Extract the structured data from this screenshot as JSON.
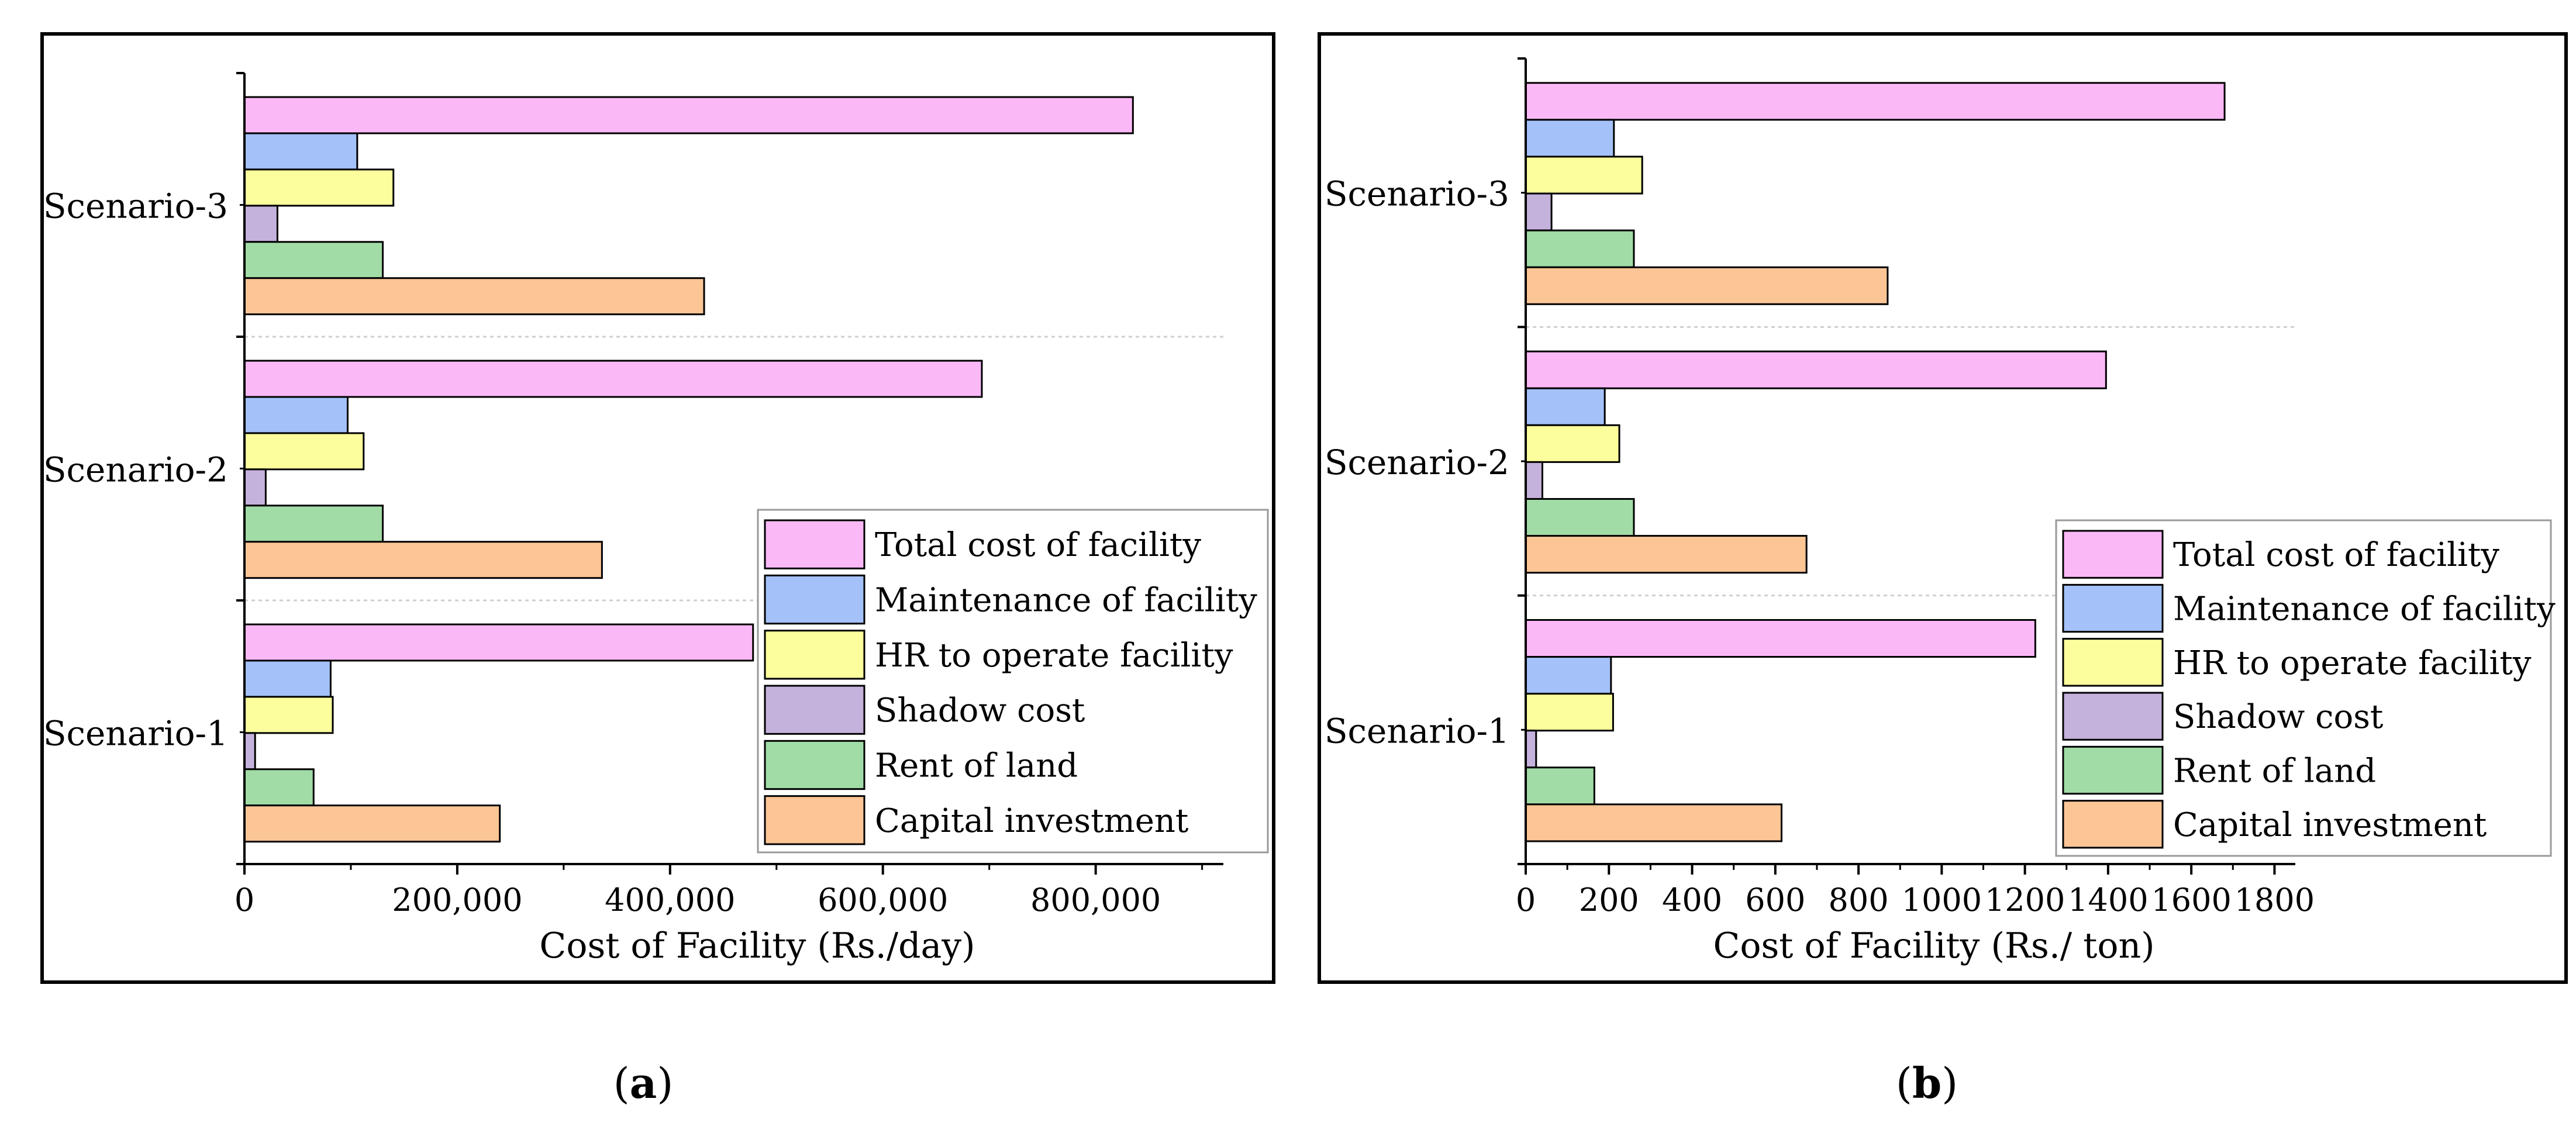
{
  "captions": [
    "a",
    "b"
  ],
  "legend": [
    {
      "name": "Total cost of facility",
      "color": "#fbb8f7"
    },
    {
      "name": "Maintenance of facility",
      "color": "#a4c1f9"
    },
    {
      "name": "HR to operate facility",
      "color": "#fcfd9c"
    },
    {
      "name": "Shadow cost",
      "color": "#c5b2dc"
    },
    {
      "name": "Rent of land",
      "color": "#a1dca6"
    },
    {
      "name": "Capital investment",
      "color": "#fbc596"
    }
  ],
  "chart_data": [
    {
      "type": "bar",
      "orientation": "horizontal",
      "categories": [
        "Scenario-1",
        "Scenario-2",
        "Scenario-3"
      ],
      "xlabel": "Cost of Facility (Rs./day)",
      "ylabel": "",
      "xlim": [
        0,
        920000
      ],
      "xticks": [
        0,
        200000,
        400000,
        600000,
        800000
      ],
      "xtick_labels": [
        "0",
        "200,000",
        "400,000",
        "600,000",
        "800,000"
      ],
      "legend_position": "bottom-right",
      "series": [
        {
          "name": "Total cost of facility",
          "values": [
            478000,
            693000,
            835000
          ]
        },
        {
          "name": "Maintenance of facility",
          "values": [
            81000,
            97000,
            106000
          ]
        },
        {
          "name": "HR to operate facility",
          "values": [
            83000,
            112000,
            140000
          ]
        },
        {
          "name": "Shadow cost",
          "values": [
            10000,
            20000,
            31000
          ]
        },
        {
          "name": "Rent of land",
          "values": [
            65000,
            130000,
            130000
          ]
        },
        {
          "name": "Capital investment",
          "values": [
            240000,
            336000,
            432000
          ]
        }
      ]
    },
    {
      "type": "bar",
      "orientation": "horizontal",
      "categories": [
        "Scenario-1",
        "Scenario-2",
        "Scenario-3"
      ],
      "xlabel": "Cost of Facility (Rs./ ton)",
      "ylabel": "",
      "xlim": [
        0,
        1850
      ],
      "xticks": [
        0,
        200,
        400,
        600,
        800,
        1000,
        1200,
        1400,
        1600,
        1800
      ],
      "xtick_labels": [
        "0",
        "200",
        "400",
        "600",
        "800",
        "1000",
        "1200",
        "1400",
        "1600",
        "1800"
      ],
      "legend_position": "bottom-right",
      "series": [
        {
          "name": "Total cost of facility",
          "values": [
            1225,
            1395,
            1680
          ]
        },
        {
          "name": "Maintenance of facility",
          "values": [
            205,
            190,
            212
          ]
        },
        {
          "name": "HR to operate facility",
          "values": [
            210,
            225,
            280
          ]
        },
        {
          "name": "Shadow cost",
          "values": [
            25,
            40,
            62
          ]
        },
        {
          "name": "Rent of land",
          "values": [
            165,
            260,
            260
          ]
        },
        {
          "name": "Capital investment",
          "values": [
            615,
            675,
            870
          ]
        }
      ]
    }
  ]
}
